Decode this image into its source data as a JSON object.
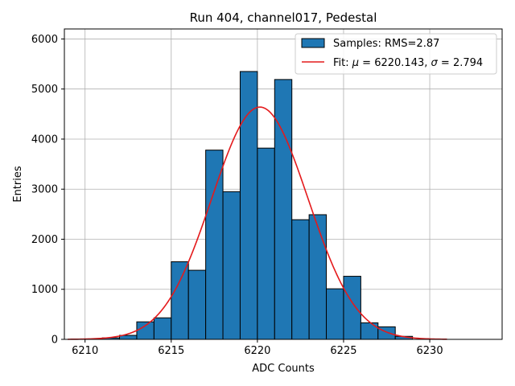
{
  "chart_data": {
    "type": "bar",
    "title": "Run 404, channel017, Pedestal",
    "xlabel": "ADC Counts",
    "ylabel": "Entries",
    "xlim": [
      6208.8,
      6234.2
    ],
    "ylim": [
      0,
      6200
    ],
    "xticks": [
      6210,
      6215,
      6220,
      6225,
      6230
    ],
    "yticks": [
      0,
      1000,
      2000,
      3000,
      4000,
      5000,
      6000
    ],
    "grid": true,
    "legend_position": "top-right",
    "bar_color": "#1f77b4",
    "fit_color": "#e41a1c",
    "histogram": {
      "name": "Samples: RMS=2.87",
      "bins": [
        6211,
        6212,
        6213,
        6214,
        6215,
        6216,
        6217,
        6218,
        6219,
        6220,
        6221,
        6222,
        6223,
        6224,
        6225,
        6226,
        6227,
        6228
      ],
      "values": [
        30,
        80,
        350,
        430,
        1550,
        1380,
        3780,
        2950,
        5350,
        3820,
        5190,
        2390,
        2490,
        1010,
        1260,
        330,
        250,
        60
      ],
      "bin_width": 1
    },
    "fit": {
      "label_prefix": "Fit: ",
      "mu_symbol": "μ",
      "sigma_symbol": "σ",
      "mu": "6220.143",
      "sigma": "2.794",
      "mu_value": 6220.143,
      "sigma_value": 2.794,
      "amplitude": 4640,
      "x_range": [
        6209,
        6231
      ]
    }
  }
}
